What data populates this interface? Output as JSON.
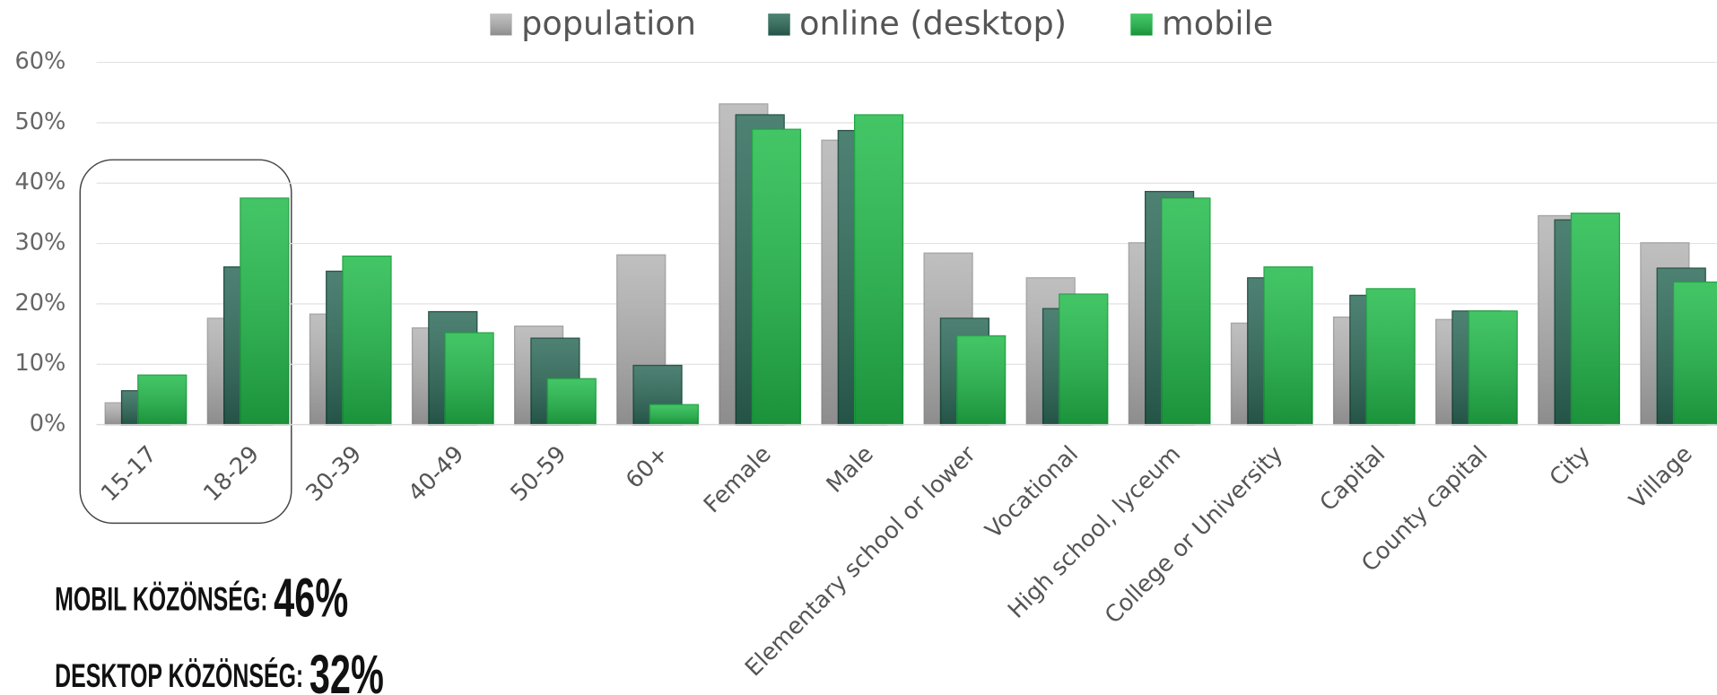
{
  "chart_data": {
    "type": "bar",
    "categories": [
      "15-17",
      "18-29",
      "30-39",
      "40-49",
      "50-59",
      "60+",
      "Female",
      "Male",
      "Elementary school or lower",
      "Vocational",
      "High school, lyceum",
      "College or University",
      "Capital",
      "County capital",
      "City",
      "Village"
    ],
    "series": [
      {
        "name": "population",
        "color": "#b4b4b4",
        "values": [
          3.6,
          17.6,
          18.3,
          16,
          16.3,
          28.1,
          53.1,
          47.1,
          28.4,
          24.3,
          30.1,
          16.8,
          17.8,
          17.4,
          34.6,
          30.1
        ]
      },
      {
        "name": "online (desktop)",
        "color": "#2e6b5a",
        "values": [
          5.6,
          26.1,
          25.4,
          18.7,
          14.3,
          9.8,
          51.3,
          48.7,
          17.6,
          19.2,
          38.6,
          24.3,
          21.4,
          18.8,
          33.9,
          25.9
        ]
      },
      {
        "name": "mobile",
        "color": "#22bb4b",
        "values": [
          8.2,
          37.5,
          27.9,
          15.2,
          7.6,
          3.3,
          48.9,
          51.3,
          14.7,
          21.6,
          37.5,
          26.1,
          22.5,
          18.8,
          35,
          23.6
        ]
      }
    ],
    "ylim": [
      0,
      60
    ],
    "yticks": [
      {
        "value": 0,
        "label": "0%"
      },
      {
        "value": 10,
        "label": "10%"
      },
      {
        "value": 20,
        "label": "20%"
      },
      {
        "value": 30,
        "label": "30%"
      },
      {
        "value": 40,
        "label": "40%"
      },
      {
        "value": 50,
        "label": "50%"
      },
      {
        "value": 60,
        "label": "60%"
      }
    ],
    "grid": true,
    "legend": "top",
    "annotations": [
      {
        "label": "MOBIL KÖZÖNSÉG:",
        "value": "46%"
      },
      {
        "label": "DESKTOP KÖZÖNSÉG:",
        "value": "32%"
      }
    ]
  }
}
